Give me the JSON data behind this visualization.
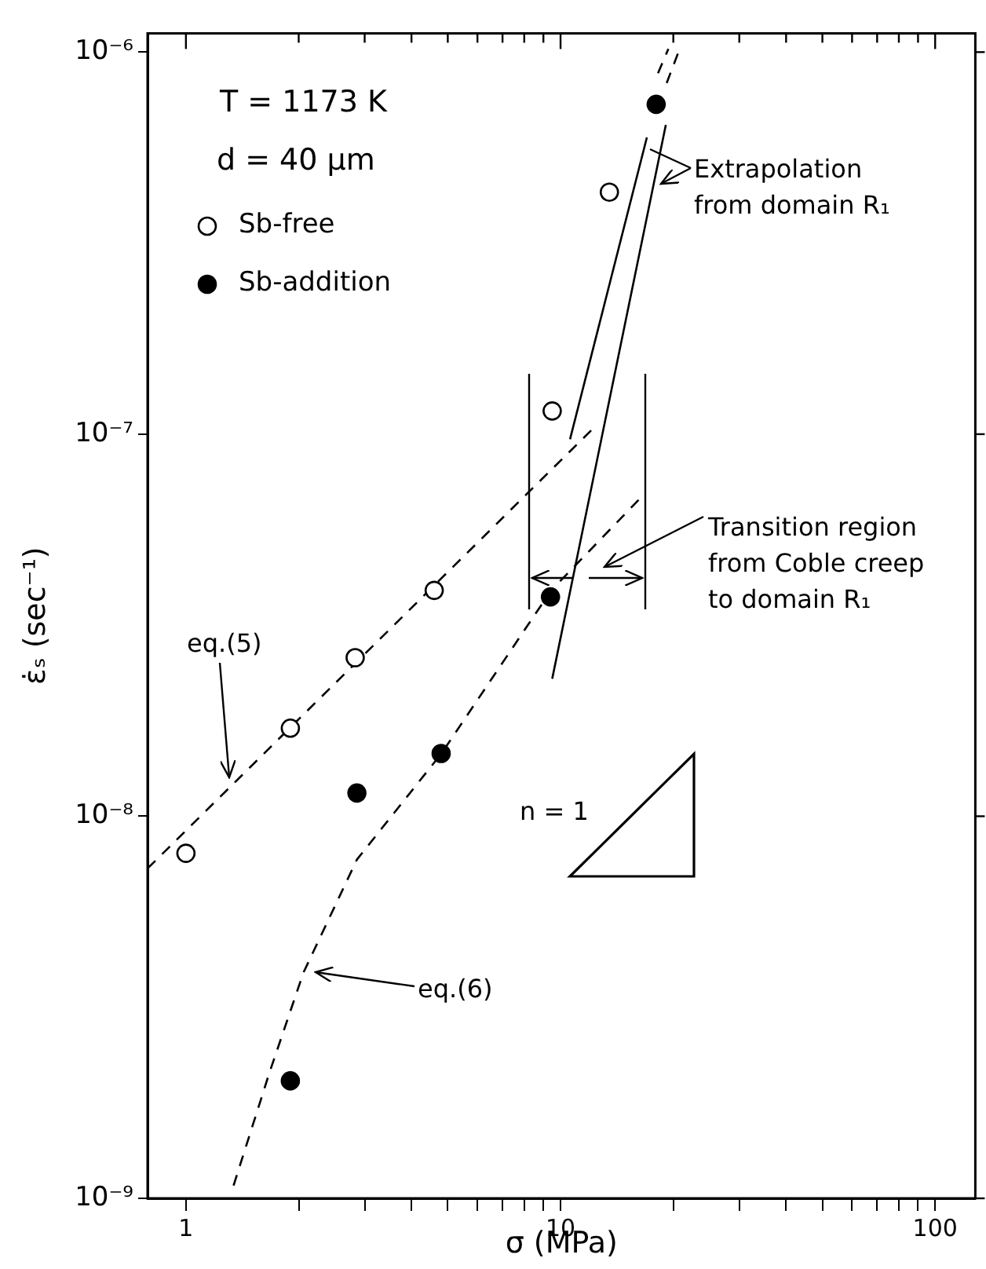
{
  "chart_data": {
    "type": "scatter",
    "xlabel": "σ (MPa)",
    "ylabel": "ε̇ₛ (sec⁻¹)",
    "log": "xy",
    "grid": false,
    "legend": "top left",
    "xlim": [
      0.79,
      128
    ],
    "ylim": [
      1e-09,
      1.12e-06
    ],
    "xticks": [
      1,
      {
        "value": 2,
        "label": null
      },
      {
        "value": 3,
        "label": null
      },
      {
        "value": 4,
        "label": null
      },
      {
        "value": 5,
        "label": null
      },
      {
        "value": 6,
        "label": null
      },
      {
        "value": 7,
        "label": null
      },
      {
        "value": 8,
        "label": null
      },
      {
        "value": 9,
        "label": null
      },
      10,
      {
        "value": 20,
        "label": null
      },
      {
        "value": 30,
        "label": null
      },
      {
        "value": 40,
        "label": null
      },
      {
        "value": 50,
        "label": null
      },
      {
        "value": 60,
        "label": null
      },
      {
        "value": 70,
        "label": null
      },
      {
        "value": 80,
        "label": null
      },
      {
        "value": 90,
        "label": null
      },
      100
    ],
    "yticks": [
      {
        "value": 1e-09,
        "label": "10⁻⁹"
      },
      {
        "value": 1e-08,
        "label": "10⁻⁸"
      },
      {
        "value": 1e-07,
        "label": "10⁻⁷"
      },
      {
        "value": 1e-06,
        "label": "10⁻⁶"
      }
    ],
    "annotations": [
      "T = 1173 K",
      "d = 40 μm",
      "Extrapolation from domain R₁",
      "Transition region from Coble creep to domain R₁",
      "eq.(5)",
      "eq.(6)",
      "n = 1"
    ],
    "series": [
      {
        "name": "Sb-free",
        "marker": "circle",
        "color": "#000000",
        "x": [
          1,
          1.9,
          2.83,
          4.6,
          9.5,
          13.5
        ],
        "values": [
          8e-09,
          1.7e-08,
          2.6e-08,
          3.9e-08,
          1.15e-07,
          4.3e-07
        ]
      },
      {
        "name": "Sb-addition",
        "marker": "circle",
        "color": "#000000",
        "x": [
          1.9,
          2.86,
          4.8,
          9.4,
          18
        ],
        "values": [
          2.03e-09,
          1.15e-08,
          1.46e-08,
          3.75e-08,
          7.3e-07
        ]
      },
      {
        "type": "line",
        "line_style": "dashed",
        "color": "#000000",
        "x": [
          0.79,
          12.4
        ],
        "values": [
          7.3e-09,
          1.05e-07
        ]
      },
      {
        "type": "line",
        "line_style": "dashed",
        "color": "#000000",
        "x": [
          1.34,
          1.67,
          2.06,
          2.86,
          4.81,
          9.44,
          16.8
        ],
        "values": [
          1.08e-09,
          2.13e-09,
          3.9e-09,
          7.7e-09,
          1.46e-08,
          3.9e-08,
          7e-08
        ]
      },
      {
        "type": "line",
        "line_style": "solid",
        "color": "#000000",
        "x": [
          10.6,
          17.0
        ],
        "values": [
          9.7e-08,
          5.98e-07
        ]
      },
      {
        "type": "line",
        "line_style": "solid",
        "color": "#000000",
        "x": [
          9.5,
          19.1
        ],
        "values": [
          2.29e-08,
          6.45e-07
        ]
      },
      {
        "type": "line",
        "line_style": "dashed",
        "color": "#000000",
        "x": [
          18.2,
          19.4
        ],
        "values": [
          8.8e-07,
          1.02e-06
        ]
      },
      {
        "type": "line",
        "line_style": "dashed",
        "color": "#000000",
        "x": [
          19.2,
          20.8
        ],
        "values": [
          8.3e-07,
          1.02e-06
        ]
      }
    ]
  }
}
